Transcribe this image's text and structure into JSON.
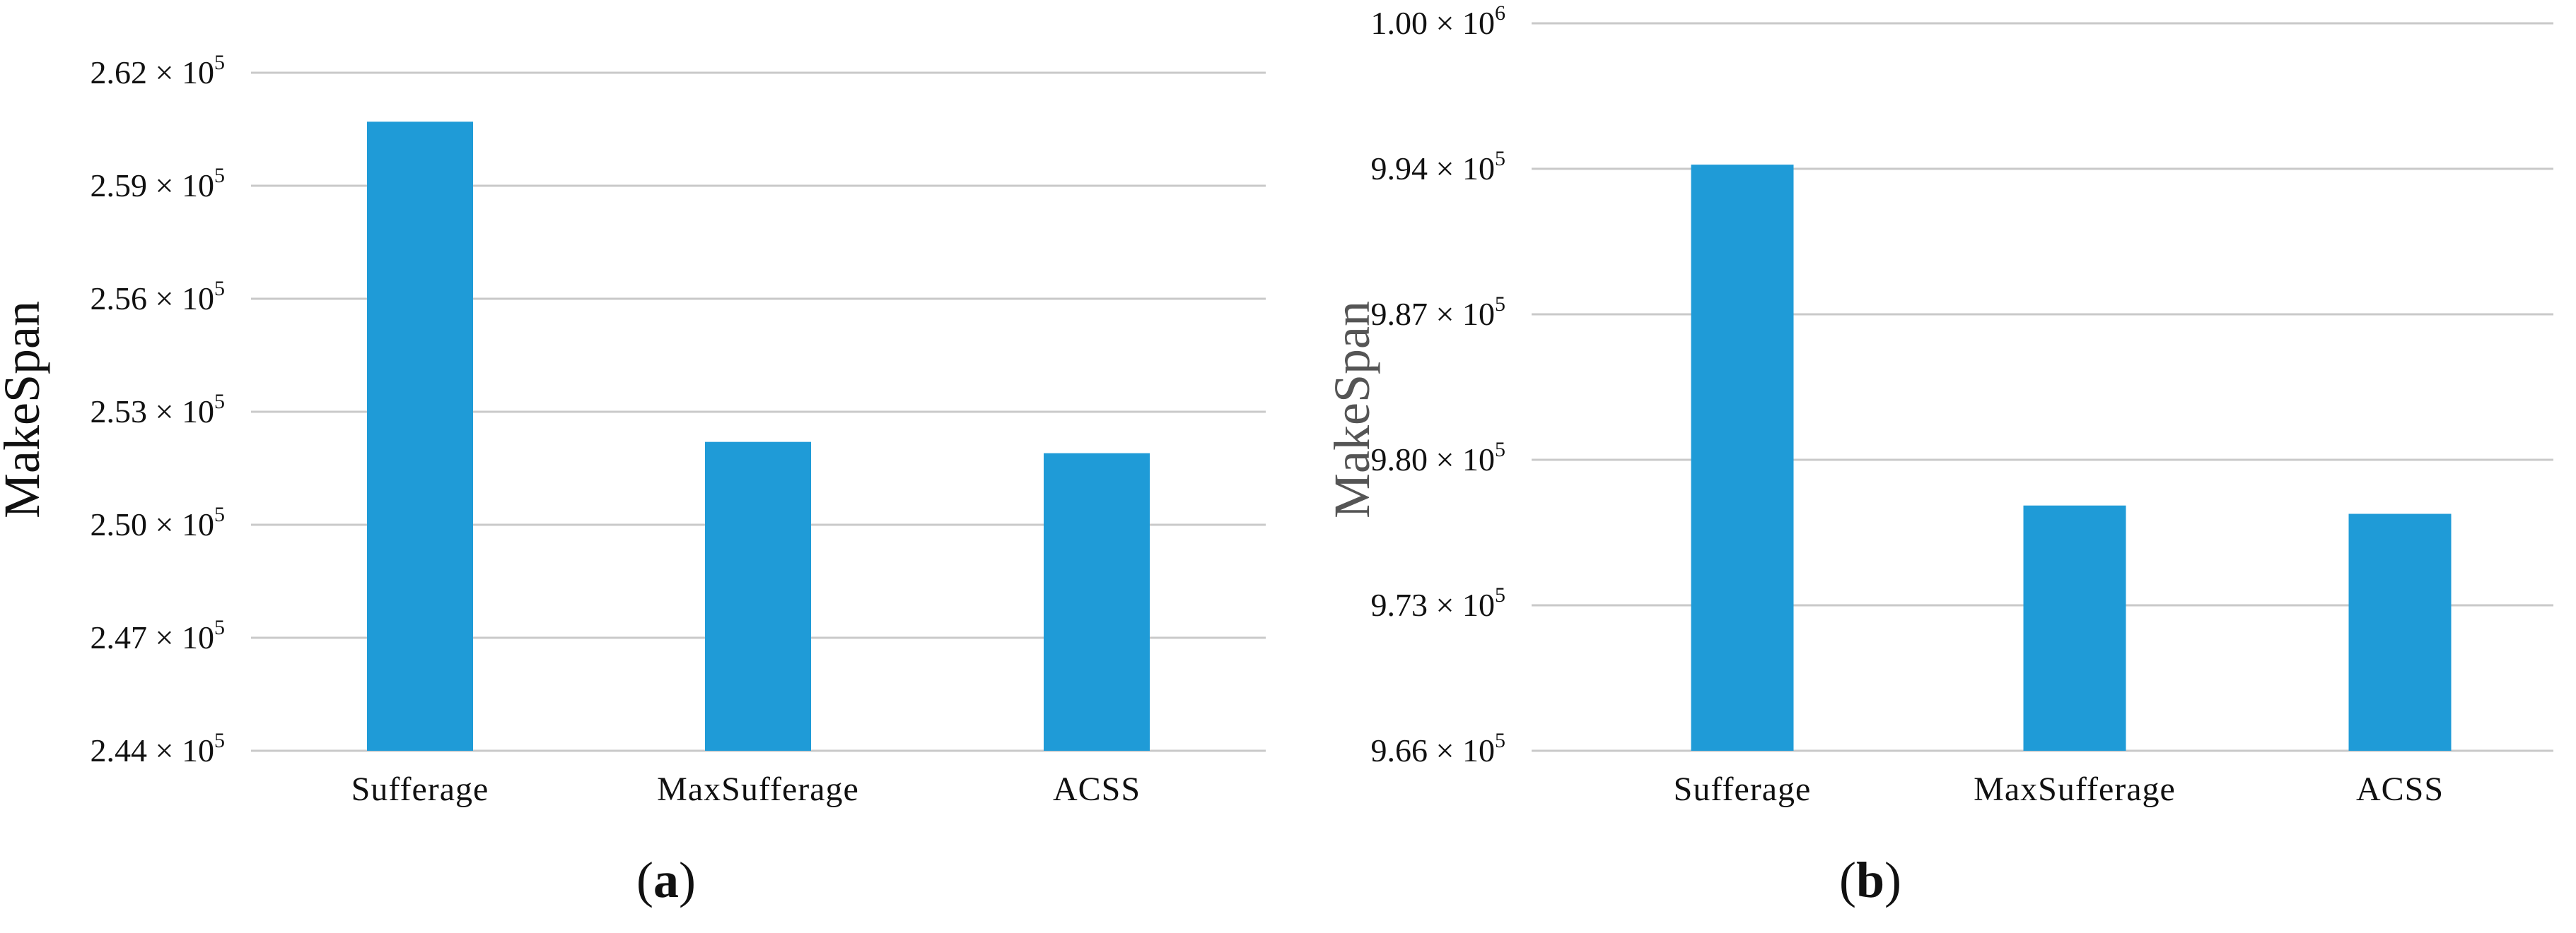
{
  "chart_data": [
    {
      "type": "bar",
      "panel_label": "a",
      "categories": [
        "Sufferage",
        "MaxSufferage",
        "ACSS"
      ],
      "values": [
        260700,
        252200,
        251900
      ],
      "ylabel": "MakeSpan",
      "xlabel": "",
      "ylim": [
        244000,
        262000
      ],
      "yticks": [
        244000,
        247000,
        250000,
        253000,
        256000,
        259000,
        262000
      ],
      "ytick_labels": [
        {
          "mantissa": "2.44",
          "exp": "5"
        },
        {
          "mantissa": "2.47",
          "exp": "5"
        },
        {
          "mantissa": "2.50",
          "exp": "5"
        },
        {
          "mantissa": "2.53",
          "exp": "5"
        },
        {
          "mantissa": "2.56",
          "exp": "5"
        },
        {
          "mantissa": "2.59",
          "exp": "5"
        },
        {
          "mantissa": "2.62",
          "exp": "5"
        }
      ],
      "grid": true,
      "bar_color": "#1f9bd7"
    },
    {
      "type": "bar",
      "panel_label": "b",
      "categories": [
        "Sufferage",
        "MaxSufferage",
        "ACSS"
      ],
      "values": [
        994200,
        977800,
        977400
      ],
      "ylabel": "MakeSpan",
      "xlabel": "",
      "ylim": [
        966000,
        1001000
      ],
      "yticks": [
        966000,
        973000,
        980000,
        987000,
        994000,
        1001000
      ],
      "ytick_labels": [
        {
          "mantissa": "9.66",
          "exp": "5"
        },
        {
          "mantissa": "9.73",
          "exp": "5"
        },
        {
          "mantissa": "9.80",
          "exp": "5"
        },
        {
          "mantissa": "9.87",
          "exp": "5"
        },
        {
          "mantissa": "9.94",
          "exp": "5"
        },
        {
          "mantissa": "1.00",
          "exp": "6"
        }
      ],
      "grid": true,
      "bar_color": "#1f9bd7"
    }
  ],
  "captions": [
    {
      "open": "(",
      "letter": "a",
      "close": ")"
    },
    {
      "open": "(",
      "letter": "b",
      "close": ")"
    }
  ]
}
